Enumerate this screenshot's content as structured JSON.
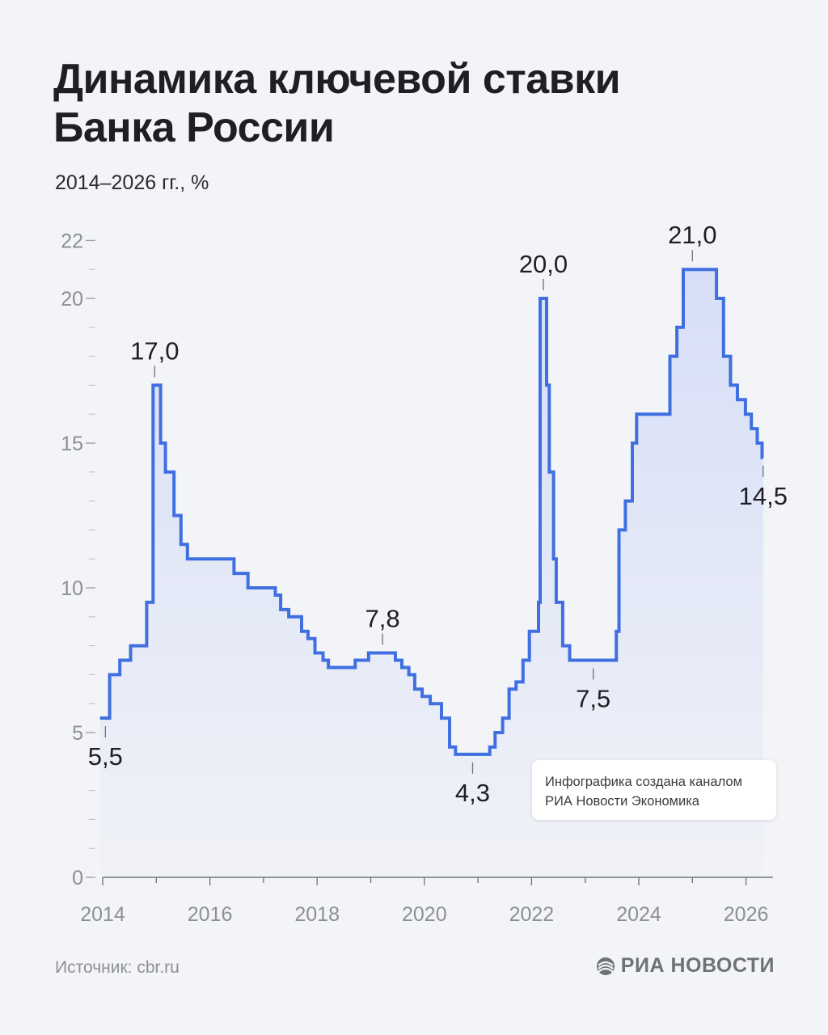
{
  "title_lines": [
    "Динамика ключевой ставки",
    "Банка России"
  ],
  "subtitle": "2014–2026 гг., %",
  "source": "Источник: cbr.ru",
  "credit_lines": [
    "Инфографика создана каналом",
    "РИА Новости Экономика"
  ],
  "logo_text": "РИА НОВОСТИ",
  "logo_icon": "ria-logo-icon",
  "colors": {
    "line": "#3f6fe0",
    "background": "#f3f4f7",
    "fill_top": "#d3dcf7",
    "axis_text": "#8d8f96"
  },
  "chart_data": {
    "type": "line",
    "step": true,
    "title": "Динамика ключевой ставки Банка России",
    "ylabel": "%",
    "xlim": [
      2014,
      2026.5
    ],
    "ylim": [
      0,
      22
    ],
    "x_ticks": [
      2014,
      2016,
      2018,
      2020,
      2022,
      2024,
      2026
    ],
    "x_tick_labels": [
      "2014",
      "2016",
      "2018",
      "2020",
      "2022",
      "2024",
      "2026"
    ],
    "y_ticks": [
      0,
      5,
      10,
      15,
      20,
      22
    ],
    "y_tick_labels": [
      "0",
      "5",
      "10",
      "15",
      "20",
      "22"
    ],
    "grid": false,
    "series": [
      {
        "points": [
          [
            2013.95,
            5.5
          ],
          [
            2014.13,
            7.0
          ],
          [
            2014.32,
            7.5
          ],
          [
            2014.52,
            8.0
          ],
          [
            2014.82,
            9.5
          ],
          [
            2014.94,
            17.0
          ],
          [
            2015.08,
            15.0
          ],
          [
            2015.17,
            14.0
          ],
          [
            2015.33,
            12.5
          ],
          [
            2015.46,
            11.5
          ],
          [
            2015.58,
            11.0
          ],
          [
            2016.45,
            10.5
          ],
          [
            2016.71,
            10.0
          ],
          [
            2017.22,
            9.75
          ],
          [
            2017.32,
            9.25
          ],
          [
            2017.47,
            9.0
          ],
          [
            2017.71,
            8.5
          ],
          [
            2017.83,
            8.25
          ],
          [
            2017.96,
            7.75
          ],
          [
            2018.11,
            7.5
          ],
          [
            2018.21,
            7.25
          ],
          [
            2018.71,
            7.5
          ],
          [
            2018.96,
            7.75
          ],
          [
            2019.46,
            7.5
          ],
          [
            2019.58,
            7.25
          ],
          [
            2019.71,
            7.0
          ],
          [
            2019.82,
            6.5
          ],
          [
            2019.96,
            6.25
          ],
          [
            2020.11,
            6.0
          ],
          [
            2020.32,
            5.5
          ],
          [
            2020.47,
            4.5
          ],
          [
            2020.58,
            4.25
          ],
          [
            2021.22,
            4.5
          ],
          [
            2021.32,
            5.0
          ],
          [
            2021.46,
            5.5
          ],
          [
            2021.58,
            6.5
          ],
          [
            2021.71,
            6.75
          ],
          [
            2021.84,
            7.5
          ],
          [
            2021.96,
            8.5
          ],
          [
            2022.13,
            9.5
          ],
          [
            2022.16,
            20.0
          ],
          [
            2022.28,
            17.0
          ],
          [
            2022.33,
            14.0
          ],
          [
            2022.41,
            11.0
          ],
          [
            2022.46,
            9.5
          ],
          [
            2022.58,
            8.0
          ],
          [
            2022.71,
            7.5
          ],
          [
            2023.58,
            8.5
          ],
          [
            2023.63,
            12.0
          ],
          [
            2023.75,
            13.0
          ],
          [
            2023.88,
            15.0
          ],
          [
            2023.96,
            16.0
          ],
          [
            2024.58,
            18.0
          ],
          [
            2024.71,
            19.0
          ],
          [
            2024.83,
            21.0
          ],
          [
            2025.45,
            20.0
          ],
          [
            2025.58,
            18.0
          ],
          [
            2025.71,
            17.0
          ],
          [
            2025.84,
            16.5
          ],
          [
            2025.99,
            16.0
          ],
          [
            2026.1,
            15.5
          ],
          [
            2026.21,
            15.0
          ],
          [
            2026.3,
            14.5
          ]
        ]
      }
    ],
    "end_x": 2026.32,
    "annotations": [
      {
        "x": 2014.05,
        "y": 5.5,
        "text": "5,5",
        "position": "below"
      },
      {
        "x": 2014.97,
        "y": 17.0,
        "text": "17,0",
        "position": "above"
      },
      {
        "x": 2019.22,
        "y": 7.75,
        "text": "7,8",
        "position": "above"
      },
      {
        "x": 2020.9,
        "y": 4.25,
        "text": "4,3",
        "position": "below"
      },
      {
        "x": 2022.22,
        "y": 20.0,
        "text": "20,0",
        "position": "above"
      },
      {
        "x": 2023.15,
        "y": 7.5,
        "text": "7,5",
        "position": "below"
      },
      {
        "x": 2025.0,
        "y": 21.0,
        "text": "21,0",
        "position": "above"
      },
      {
        "x": 2026.32,
        "y": 14.5,
        "text": "14,5",
        "position": "below"
      }
    ]
  }
}
